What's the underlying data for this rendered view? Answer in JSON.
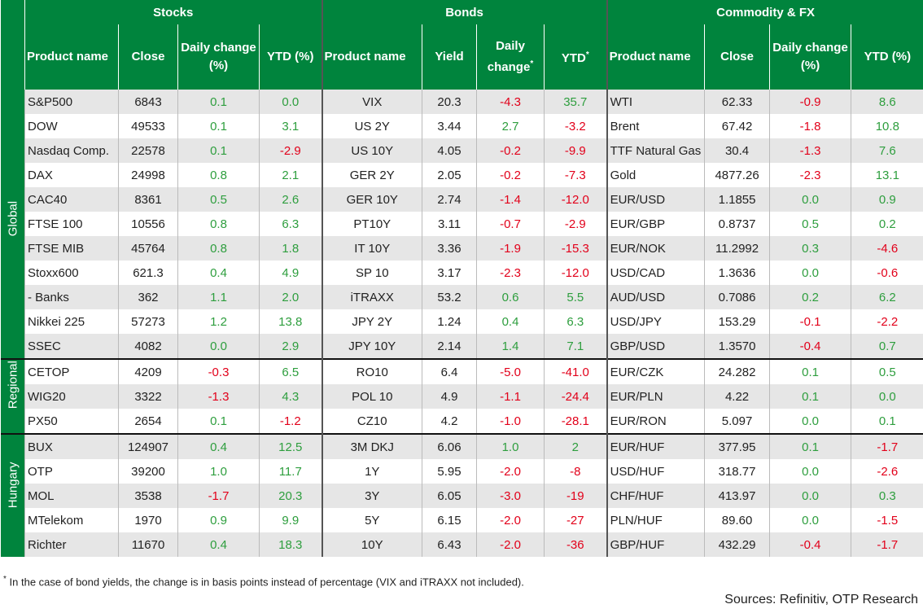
{
  "header": {
    "groups": [
      "Stocks",
      "Bonds",
      "Commodity & FX"
    ],
    "columns": [
      "Product name",
      "Close",
      "Daily change (%)",
      "YTD (%)",
      "Product name",
      "Yield",
      {
        "text": "Daily change",
        "mark": "*"
      },
      {
        "text": "YTD",
        "mark": "*"
      },
      "Product name",
      "Close",
      "Daily change (%)",
      "YTD (%)"
    ]
  },
  "sections": [
    {
      "label": "Global",
      "rows": [
        [
          "S&P500",
          "6843",
          "0.1",
          "0.0",
          "VIX",
          "20.3",
          "-4.3",
          "35.7",
          "WTI",
          "62.33",
          "-0.9",
          "8.6"
        ],
        [
          "DOW",
          "49533",
          "0.1",
          "3.1",
          "US 2Y",
          "3.44",
          "2.7",
          "-3.2",
          "Brent",
          "67.42",
          "-1.8",
          "10.8"
        ],
        [
          "Nasdaq Comp.",
          "22578",
          "0.1",
          "-2.9",
          "US 10Y",
          "4.05",
          "-0.2",
          "-9.9",
          "TTF Natural Gas",
          "30.4",
          "-1.3",
          "7.6"
        ],
        [
          "DAX",
          "24998",
          "0.8",
          "2.1",
          "GER 2Y",
          "2.05",
          "-0.2",
          "-7.3",
          "Gold",
          "4877.26",
          "-2.3",
          "13.1"
        ],
        [
          "CAC40",
          "8361",
          "0.5",
          "2.6",
          "GER 10Y",
          "2.74",
          "-1.4",
          "-12.0",
          "EUR/USD",
          "1.1855",
          "0.0",
          "0.9"
        ],
        [
          "FTSE 100",
          "10556",
          "0.8",
          "6.3",
          "PT10Y",
          "3.11",
          "-0.7",
          "-2.9",
          "EUR/GBP",
          "0.8737",
          "0.5",
          "0.2"
        ],
        [
          "FTSE MIB",
          "45764",
          "0.8",
          "1.8",
          "IT 10Y",
          "3.36",
          "-1.9",
          "-15.3",
          "EUR/NOK",
          "11.2992",
          "0.3",
          "-4.6"
        ],
        [
          "Stoxx600",
          "621.3",
          "0.4",
          "4.9",
          "SP 10",
          "3.17",
          "-2.3",
          "-12.0",
          "USD/CAD",
          "1.3636",
          "0.0",
          "-0.6"
        ],
        [
          "- Banks",
          "362",
          "1.1",
          "2.0",
          "iTRAXX",
          "53.2",
          "0.6",
          "5.5",
          "AUD/USD",
          "0.7086",
          "0.2",
          "6.2"
        ],
        [
          "Nikkei 225",
          "57273",
          "1.2",
          "13.8",
          "JPY 2Y",
          "1.24",
          "0.4",
          "6.3",
          "USD/JPY",
          "153.29",
          "-0.1",
          "-2.2"
        ],
        [
          "SSEC",
          "4082",
          "0.0",
          "2.9",
          "JPY 10Y",
          "2.14",
          "1.4",
          "7.1",
          "GBP/USD",
          "1.3570",
          "-0.4",
          "0.7"
        ]
      ]
    },
    {
      "label": "Regional",
      "rows": [
        [
          "CETOP",
          "4209",
          "-0.3",
          "6.5",
          "RO10",
          "6.4",
          "-5.0",
          "-41.0",
          "EUR/CZK",
          "24.282",
          "0.1",
          "0.5"
        ],
        [
          "WIG20",
          "3322",
          "-1.3",
          "4.3",
          "POL 10",
          "4.9",
          "-1.1",
          "-24.4",
          "EUR/PLN",
          "4.22",
          "0.1",
          "0.0"
        ],
        [
          "PX50",
          "2654",
          "0.1",
          "-1.2",
          "CZ10",
          "4.2",
          "-1.0",
          "-28.1",
          "EUR/RON",
          "5.097",
          "0.0",
          "0.1"
        ]
      ]
    },
    {
      "label": "Hungary",
      "rows": [
        [
          "BUX",
          "124907",
          "0.4",
          "12.5",
          "3M DKJ",
          "6.06",
          "1.0",
          "2",
          "EUR/HUF",
          "377.95",
          "0.1",
          "-1.7"
        ],
        [
          "OTP",
          "39200",
          "1.0",
          "11.7",
          "1Y",
          "5.95",
          "-2.0",
          "-8",
          "USD/HUF",
          "318.77",
          "0.0",
          "-2.6"
        ],
        [
          "MOL",
          "3538",
          "-1.7",
          "20.3",
          "3Y",
          "6.05",
          "-3.0",
          "-19",
          "CHF/HUF",
          "413.97",
          "0.0",
          "0.3"
        ],
        [
          "MTelekom",
          "1970",
          "0.9",
          "9.9",
          "5Y",
          "6.15",
          "-2.0",
          "-27",
          "PLN/HUF",
          "89.60",
          "0.0",
          "-1.5"
        ],
        [
          "Richter",
          "11670",
          "0.4",
          "18.3",
          "10Y",
          "6.43",
          "-2.0",
          "-36",
          "GBP/HUF",
          "432.29",
          "-0.4",
          "-1.7"
        ]
      ]
    }
  ],
  "footnote": {
    "mark": "*",
    "text": "In the case of bond yields, the change is in basis points instead of percentage (VIX and iTRAXX not included)."
  },
  "sources": "Sources: Refinitiv, OTP Research"
}
